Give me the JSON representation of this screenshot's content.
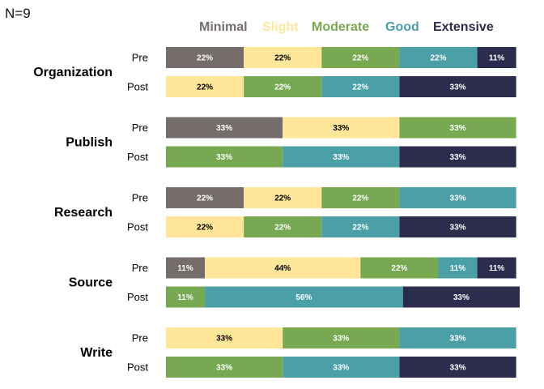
{
  "sample_label": "N=9",
  "colors": {
    "Minimal": "#746d6c",
    "Slight": "#ffe699",
    "Moderate": "#77a852",
    "Good": "#4ba0a8",
    "Extensive": "#2c2c4e"
  },
  "chart_data": {
    "type": "bar",
    "orientation": "horizontal",
    "stacked": true,
    "unit": "%",
    "xlim": [
      0,
      100
    ],
    "legend_position": "top",
    "series_names": [
      "Minimal",
      "Slight",
      "Moderate",
      "Good",
      "Extensive"
    ],
    "categories": [
      "Organization",
      "Publish",
      "Research",
      "Source",
      "Write"
    ],
    "groups": [
      "Pre",
      "Post"
    ],
    "data": [
      {
        "category": "Organization",
        "phase": "Pre",
        "values": [
          22,
          22,
          22,
          22,
          11
        ]
      },
      {
        "category": "Organization",
        "phase": "Post",
        "values": [
          0,
          22,
          22,
          22,
          33
        ]
      },
      {
        "category": "Publish",
        "phase": "Pre",
        "values": [
          33,
          33,
          33,
          0,
          0
        ]
      },
      {
        "category": "Publish",
        "phase": "Post",
        "values": [
          0,
          0,
          33,
          33,
          33
        ]
      },
      {
        "category": "Research",
        "phase": "Pre",
        "values": [
          22,
          22,
          22,
          33,
          0
        ]
      },
      {
        "category": "Research",
        "phase": "Post",
        "values": [
          0,
          22,
          22,
          22,
          33
        ]
      },
      {
        "category": "Source",
        "phase": "Pre",
        "values": [
          11,
          44,
          22,
          11,
          11
        ]
      },
      {
        "category": "Source",
        "phase": "Post",
        "values": [
          0,
          0,
          11,
          56,
          33
        ]
      },
      {
        "category": "Write",
        "phase": "Pre",
        "values": [
          0,
          33,
          33,
          33,
          0
        ]
      },
      {
        "category": "Write",
        "phase": "Post",
        "values": [
          0,
          0,
          33,
          33,
          33
        ]
      }
    ]
  }
}
